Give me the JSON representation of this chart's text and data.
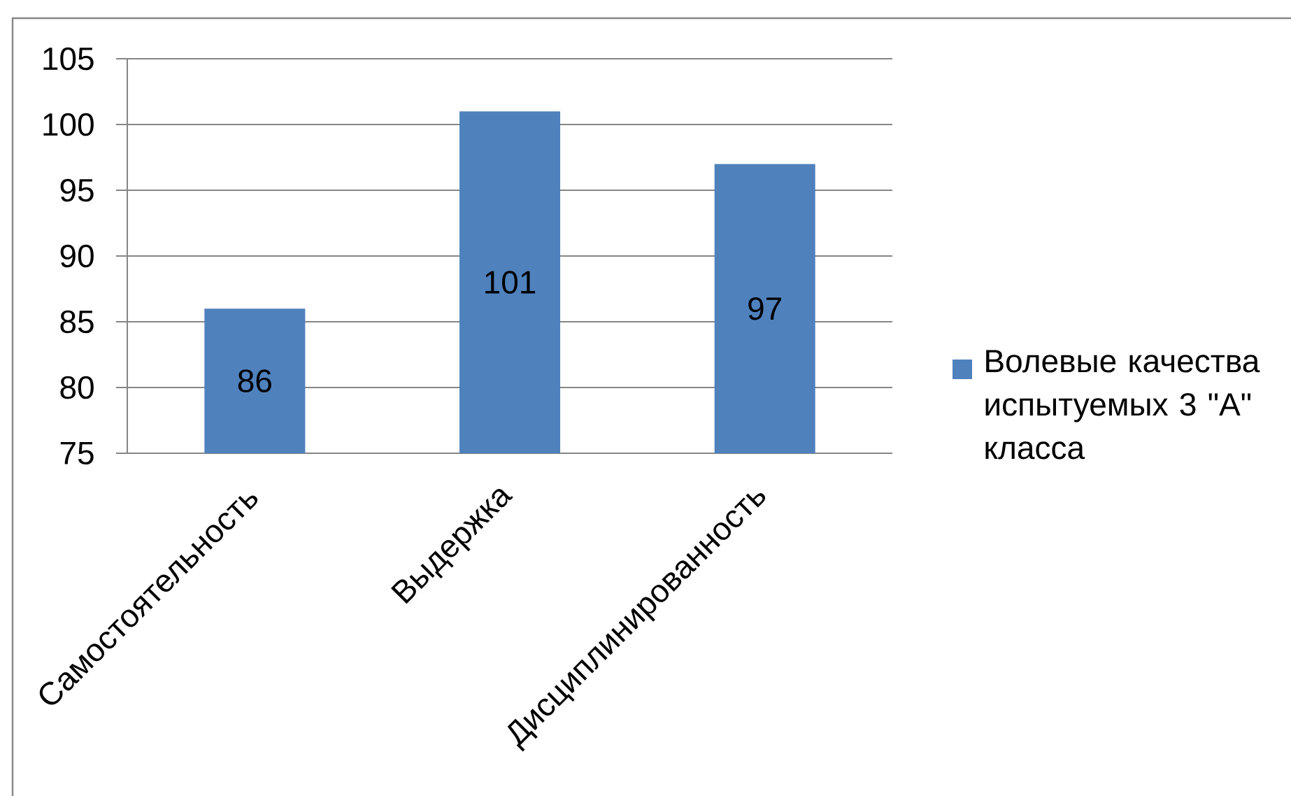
{
  "chart_data": {
    "type": "bar",
    "categories": [
      "Самостоятельность",
      "Выдержка",
      "Дисциплинированность"
    ],
    "series": [
      {
        "name": "Волевые качества испытуемых 3 \"А\" класса",
        "color": "#4f81bd",
        "values": [
          86,
          101,
          97
        ]
      }
    ],
    "ylim": [
      75,
      105
    ],
    "yticks": [
      75,
      80,
      85,
      90,
      95,
      100,
      105
    ],
    "grid": "y",
    "legend": "right",
    "data_labels": true
  }
}
